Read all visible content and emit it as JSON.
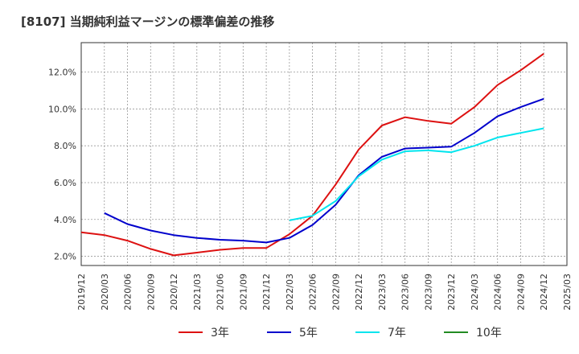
{
  "chart_data": {
    "type": "line",
    "title": "[8107]  当期純利益マージンの標準偏差の推移",
    "xlabel": "",
    "ylabel": "",
    "ylim": [
      1.5,
      13.6
    ],
    "yticks": [
      2.0,
      4.0,
      6.0,
      8.0,
      10.0,
      12.0
    ],
    "ytick_labels": [
      "2.0%",
      "4.0%",
      "6.0%",
      "8.0%",
      "10.0%",
      "12.0%"
    ],
    "xticks": [
      "2019/12",
      "2020/03",
      "2020/06",
      "2020/09",
      "2020/12",
      "2021/03",
      "2021/06",
      "2021/09",
      "2021/12",
      "2022/03",
      "2022/06",
      "2022/09",
      "2022/12",
      "2023/03",
      "2023/06",
      "2023/09",
      "2023/12",
      "2024/03",
      "2024/06",
      "2024/09",
      "2024/12",
      "2025/03"
    ],
    "grid": true,
    "legend_position": "bottom",
    "series": [
      {
        "name": "3年",
        "color": "#dd1111",
        "points": [
          [
            "2019/12",
            3.3
          ],
          [
            "2020/03",
            3.15
          ],
          [
            "2020/06",
            2.85
          ],
          [
            "2020/09",
            2.4
          ],
          [
            "2020/12",
            2.05
          ],
          [
            "2021/03",
            2.2
          ],
          [
            "2021/06",
            2.35
          ],
          [
            "2021/09",
            2.45
          ],
          [
            "2021/12",
            2.45
          ],
          [
            "2022/03",
            3.2
          ],
          [
            "2022/06",
            4.2
          ],
          [
            "2022/09",
            5.9
          ],
          [
            "2022/12",
            7.8
          ],
          [
            "2023/03",
            9.1
          ],
          [
            "2023/06",
            9.55
          ],
          [
            "2023/09",
            9.35
          ],
          [
            "2023/12",
            9.2
          ],
          [
            "2024/03",
            10.1
          ],
          [
            "2024/06",
            11.3
          ],
          [
            "2024/09",
            12.1
          ],
          [
            "2024/12",
            13.0
          ]
        ]
      },
      {
        "name": "5年",
        "color": "#0000cc",
        "points": [
          [
            "2020/03",
            4.35
          ],
          [
            "2020/06",
            3.75
          ],
          [
            "2020/09",
            3.4
          ],
          [
            "2020/12",
            3.15
          ],
          [
            "2021/03",
            3.0
          ],
          [
            "2021/06",
            2.9
          ],
          [
            "2021/09",
            2.85
          ],
          [
            "2021/12",
            2.75
          ],
          [
            "2022/03",
            3.0
          ],
          [
            "2022/06",
            3.7
          ],
          [
            "2022/09",
            4.8
          ],
          [
            "2022/12",
            6.4
          ],
          [
            "2023/03",
            7.4
          ],
          [
            "2023/06",
            7.85
          ],
          [
            "2023/09",
            7.9
          ],
          [
            "2023/12",
            7.95
          ],
          [
            "2024/03",
            8.7
          ],
          [
            "2024/06",
            9.6
          ],
          [
            "2024/09",
            10.1
          ],
          [
            "2024/12",
            10.55
          ]
        ]
      },
      {
        "name": "7年",
        "color": "#00e5ee",
        "points": [
          [
            "2022/03",
            3.95
          ],
          [
            "2022/06",
            4.2
          ],
          [
            "2022/09",
            5.0
          ],
          [
            "2022/12",
            6.35
          ],
          [
            "2023/03",
            7.25
          ],
          [
            "2023/06",
            7.7
          ],
          [
            "2023/09",
            7.75
          ],
          [
            "2023/12",
            7.65
          ],
          [
            "2024/03",
            8.0
          ],
          [
            "2024/06",
            8.45
          ],
          [
            "2024/09",
            8.7
          ],
          [
            "2024/12",
            8.95
          ]
        ]
      },
      {
        "name": "10年",
        "color": "#228b22",
        "points": []
      }
    ]
  }
}
